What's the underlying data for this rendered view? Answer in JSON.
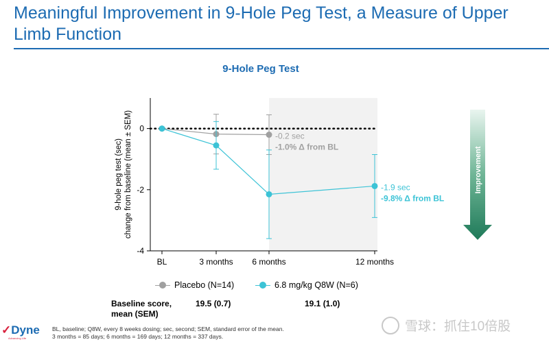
{
  "slide": {
    "title": "Meaningful Improvement in 9-Hole Peg Test, a Measure of Upper Limb Function"
  },
  "chart_data": {
    "type": "line",
    "title": "9-Hole Peg Test",
    "ylabel_line1": "9-hole peg test (sec)",
    "ylabel_line2": "change from baseline (mean ± SEM)",
    "xlabel": "",
    "categories": [
      "BL",
      "3 months",
      "6 months",
      "12 months"
    ],
    "x_days": [
      0,
      85,
      169,
      337
    ],
    "ylim": [
      -4,
      1
    ],
    "yticks": [
      0,
      -2,
      -4
    ],
    "shaded_from_category": "6 months",
    "series": [
      {
        "name": "Placebo (N=14)",
        "color": "#a0a0a0",
        "x": [
          "BL",
          "3 months",
          "6 months"
        ],
        "values": [
          0,
          -0.18,
          -0.2
        ],
        "sem": [
          0,
          0.65,
          0.65
        ],
        "end_label_1": "-0.2 sec",
        "end_label_2": "-1.0% Δ from BL"
      },
      {
        "name": "6.8 mg/kg Q8W (N=6)",
        "color": "#3cc3d6",
        "x": [
          "BL",
          "3 months",
          "6 months",
          "12 months"
        ],
        "values": [
          0,
          -0.55,
          -2.15,
          -1.88
        ],
        "sem": [
          0,
          0.78,
          1.45,
          1.03
        ],
        "end_label_1": "-1.9 sec",
        "end_label_2": "-9.8% Δ from BL"
      }
    ]
  },
  "improvement": {
    "label": "Improvement"
  },
  "baseline": {
    "label_line1": "Baseline score,",
    "label_line2": "mean (SEM)",
    "placebo": "19.5 (0.7)",
    "treated": "19.1 (1.0)"
  },
  "footnote": {
    "line1": "BL, baseline; Q8W, every 8 weeks dosing; sec, second; SEM, standard error of the mean.",
    "line2": "3 months = 85 days; 6 months = 169 days; 12 months = 337 days."
  },
  "logo": {
    "text": "Dyne",
    "tagline": "Advancing Life"
  },
  "watermark": {
    "text": "雪球：抓住10倍股"
  },
  "colors": {
    "brand_blue": "#1c6bb2",
    "placebo": "#a0a0a0",
    "treated": "#3cc3d6",
    "arrow": "#2e8b6a"
  }
}
